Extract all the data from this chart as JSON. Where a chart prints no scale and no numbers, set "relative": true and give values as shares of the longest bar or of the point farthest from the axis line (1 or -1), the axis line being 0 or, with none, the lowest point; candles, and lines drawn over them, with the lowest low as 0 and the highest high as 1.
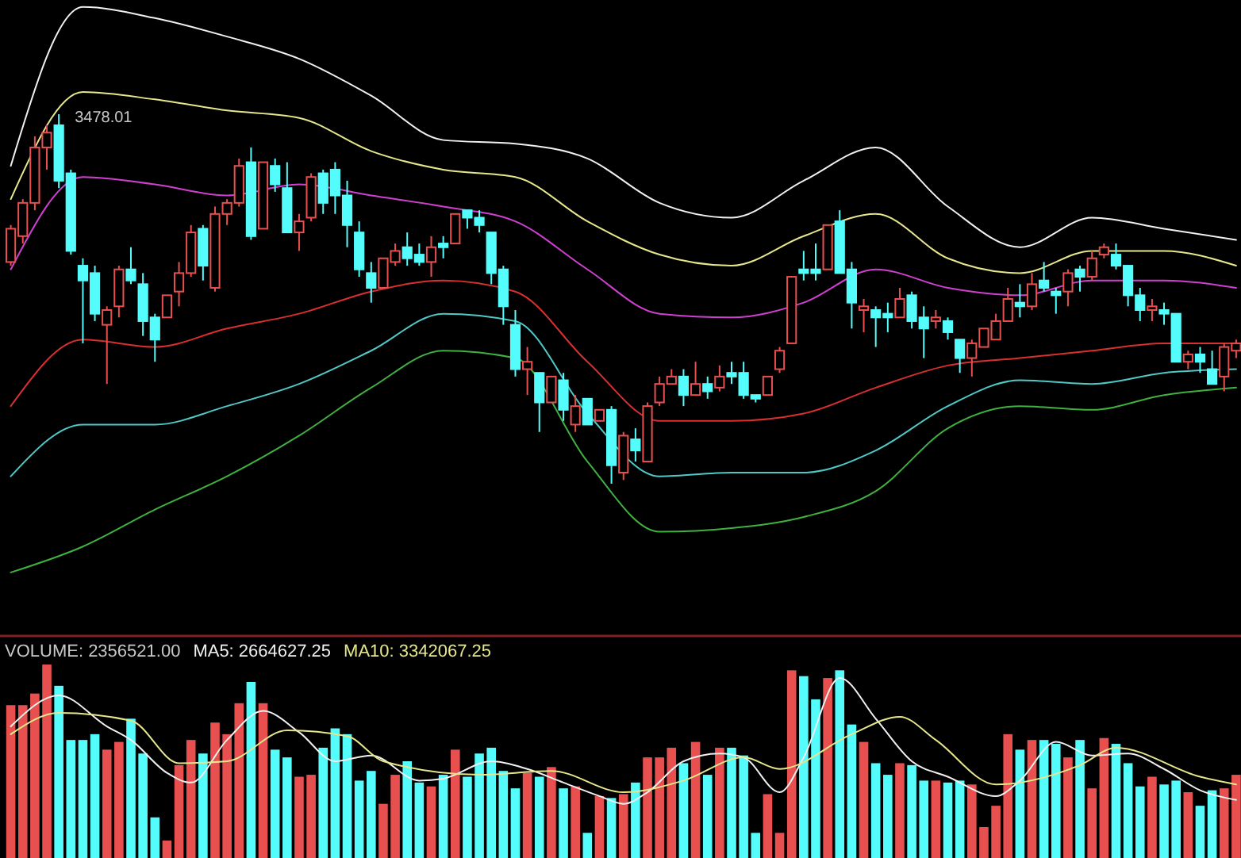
{
  "chart_data": [
    {
      "type": "candlestick",
      "relative": true,
      "categories": [
        null,
        null,
        null,
        null,
        null,
        null,
        null,
        null,
        null,
        null,
        null,
        null,
        null,
        null,
        null,
        null,
        null,
        null,
        null,
        null,
        null,
        null,
        null,
        null,
        null,
        null,
        null,
        null,
        null,
        null,
        null,
        null,
        null,
        null,
        null,
        null,
        null,
        null,
        null,
        null,
        null,
        null,
        null,
        null,
        null,
        null,
        null,
        null,
        null,
        null,
        null,
        null,
        null,
        null,
        null,
        null,
        null,
        null,
        null,
        null,
        null,
        null,
        null,
        null,
        null,
        null,
        null,
        null,
        null,
        null,
        null,
        null,
        null,
        null,
        null,
        null,
        null,
        null,
        null,
        null,
        null,
        null,
        null,
        null,
        null,
        null,
        null,
        null,
        null,
        null,
        null,
        null,
        null,
        null,
        null,
        null,
        null,
        null,
        null,
        null,
        null,
        null,
        null
      ],
      "ohlc": [
        [
          0.6,
          0.7,
          0.59,
          0.69
        ],
        [
          0.67,
          0.77,
          0.65,
          0.76
        ],
        [
          0.76,
          0.94,
          0.74,
          0.91
        ],
        [
          0.91,
          0.97,
          0.85,
          0.95
        ],
        [
          0.97,
          1.0,
          0.8,
          0.82
        ],
        [
          0.84,
          0.85,
          0.62,
          0.63
        ],
        [
          0.59,
          0.61,
          0.38,
          0.55
        ],
        [
          0.57,
          0.59,
          0.44,
          0.46
        ],
        [
          0.43,
          0.48,
          0.27,
          0.47
        ],
        [
          0.48,
          0.59,
          0.45,
          0.58
        ],
        [
          0.58,
          0.64,
          0.54,
          0.55
        ],
        [
          0.54,
          0.57,
          0.4,
          0.44
        ],
        [
          0.45,
          0.46,
          0.33,
          0.39
        ],
        [
          0.45,
          0.51,
          0.45,
          0.51
        ],
        [
          0.52,
          0.6,
          0.48,
          0.57
        ],
        [
          0.57,
          0.7,
          0.56,
          0.68
        ],
        [
          0.69,
          0.7,
          0.55,
          0.59
        ],
        [
          0.53,
          0.75,
          0.52,
          0.73
        ],
        [
          0.73,
          0.77,
          0.7,
          0.76
        ],
        [
          0.76,
          0.88,
          0.75,
          0.86
        ],
        [
          0.87,
          0.91,
          0.66,
          0.67
        ],
        [
          0.69,
          0.87,
          0.69,
          0.87
        ],
        [
          0.86,
          0.88,
          0.79,
          0.81
        ],
        [
          0.8,
          0.87,
          0.68,
          0.68
        ],
        [
          0.68,
          0.73,
          0.63,
          0.71
        ],
        [
          0.72,
          0.84,
          0.71,
          0.83
        ],
        [
          0.84,
          0.85,
          0.73,
          0.76
        ],
        [
          0.85,
          0.87,
          0.73,
          0.78
        ],
        [
          0.78,
          0.82,
          0.64,
          0.7
        ],
        [
          0.68,
          0.71,
          0.56,
          0.58
        ],
        [
          0.57,
          0.6,
          0.49,
          0.53
        ],
        [
          0.53,
          0.61,
          0.53,
          0.61
        ],
        [
          0.6,
          0.65,
          0.59,
          0.63
        ],
        [
          0.64,
          0.68,
          0.59,
          0.61
        ],
        [
          0.62,
          0.65,
          0.59,
          0.6
        ],
        [
          0.6,
          0.67,
          0.56,
          0.64
        ],
        [
          0.65,
          0.67,
          0.61,
          0.64
        ],
        [
          0.65,
          0.73,
          0.65,
          0.73
        ],
        [
          0.74,
          0.74,
          0.69,
          0.72
        ],
        [
          0.72,
          0.74,
          0.68,
          0.7
        ],
        [
          0.68,
          0.68,
          0.54,
          0.57
        ],
        [
          0.58,
          0.59,
          0.43,
          0.48
        ],
        [
          0.43,
          0.47,
          0.29,
          0.31
        ],
        [
          0.31,
          0.37,
          0.24,
          0.33
        ],
        [
          0.3,
          0.3,
          0.14,
          0.22
        ],
        [
          0.22,
          0.29,
          0.22,
          0.29
        ],
        [
          0.28,
          0.3,
          0.17,
          0.2
        ],
        [
          0.16,
          0.24,
          0.14,
          0.21
        ],
        [
          0.23,
          0.23,
          0.16,
          0.16
        ],
        [
          0.17,
          0.2,
          0.17,
          0.2
        ],
        [
          0.2,
          0.21,
          0.0,
          0.05
        ],
        [
          0.03,
          0.14,
          0.01,
          0.13
        ],
        [
          0.12,
          0.15,
          0.06,
          0.09
        ],
        [
          0.06,
          0.22,
          0.06,
          0.21
        ],
        [
          0.22,
          0.29,
          0.21,
          0.27
        ],
        [
          0.27,
          0.31,
          0.27,
          0.29
        ],
        [
          0.29,
          0.31,
          0.21,
          0.24
        ],
        [
          0.24,
          0.33,
          0.24,
          0.27
        ],
        [
          0.27,
          0.29,
          0.23,
          0.25
        ],
        [
          0.26,
          0.32,
          0.25,
          0.29
        ],
        [
          0.3,
          0.33,
          0.27,
          0.29
        ],
        [
          0.3,
          0.33,
          0.23,
          0.24
        ],
        [
          0.24,
          0.24,
          0.22,
          0.23
        ],
        [
          0.24,
          0.29,
          0.24,
          0.29
        ],
        [
          0.31,
          0.37,
          0.3,
          0.36
        ],
        [
          0.38,
          0.56,
          0.38,
          0.56
        ],
        [
          0.58,
          0.63,
          0.55,
          0.57
        ],
        [
          0.58,
          0.65,
          0.55,
          0.57
        ],
        [
          0.58,
          0.7,
          0.58,
          0.7
        ],
        [
          0.71,
          0.74,
          0.57,
          0.57
        ],
        [
          0.58,
          0.6,
          0.42,
          0.49
        ],
        [
          0.47,
          0.5,
          0.41,
          0.48
        ],
        [
          0.47,
          0.48,
          0.37,
          0.45
        ],
        [
          0.46,
          0.49,
          0.41,
          0.45
        ],
        [
          0.45,
          0.53,
          0.45,
          0.5
        ],
        [
          0.51,
          0.52,
          0.42,
          0.44
        ],
        [
          0.45,
          0.48,
          0.34,
          0.42
        ],
        [
          0.44,
          0.47,
          0.42,
          0.45
        ],
        [
          0.44,
          0.45,
          0.39,
          0.41
        ],
        [
          0.39,
          0.39,
          0.3,
          0.34
        ],
        [
          0.34,
          0.39,
          0.29,
          0.38
        ],
        [
          0.37,
          0.42,
          0.37,
          0.42
        ],
        [
          0.39,
          0.46,
          0.39,
          0.44
        ],
        [
          0.44,
          0.53,
          0.44,
          0.5
        ],
        [
          0.49,
          0.54,
          0.45,
          0.48
        ],
        [
          0.48,
          0.57,
          0.47,
          0.54
        ],
        [
          0.55,
          0.6,
          0.52,
          0.53
        ],
        [
          0.52,
          0.53,
          0.46,
          0.51
        ],
        [
          0.52,
          0.58,
          0.48,
          0.57
        ],
        [
          0.58,
          0.59,
          0.52,
          0.56
        ],
        [
          0.56,
          0.63,
          0.55,
          0.61
        ],
        [
          0.62,
          0.65,
          0.61,
          0.64
        ],
        [
          0.62,
          0.65,
          0.58,
          0.59
        ],
        [
          0.59,
          0.59,
          0.48,
          0.51
        ],
        [
          0.51,
          0.53,
          0.44,
          0.47
        ],
        [
          0.47,
          0.5,
          0.44,
          0.48
        ],
        [
          0.47,
          0.49,
          0.43,
          0.46
        ],
        [
          0.46,
          0.46,
          0.33,
          0.33
        ],
        [
          0.33,
          0.36,
          0.31,
          0.35
        ],
        [
          0.35,
          0.37,
          0.3,
          0.33
        ],
        [
          0.31,
          0.36,
          0.27,
          0.27
        ],
        [
          0.29,
          0.38,
          0.25,
          0.37
        ],
        [
          0.36,
          0.39,
          0.34,
          0.38
        ]
      ],
      "series": [
        {
          "type": "line",
          "color": "#f0f0f0",
          "values": [
            0.86,
            null,
            null,
            null,
            null,
            null,
            1.29,
            null,
            null,
            null,
            null,
            null,
            1.26,
            null,
            null,
            null,
            null,
            null,
            1.21,
            null,
            null,
            null,
            null,
            null,
            1.15,
            null,
            null,
            null,
            null,
            null,
            1.05,
            null,
            null,
            null,
            null,
            null,
            0.93,
            null,
            null,
            null,
            null,
            null,
            0.92,
            null,
            null,
            null,
            null,
            null,
            0.88,
            null,
            null,
            null,
            null,
            null,
            0.76,
            null,
            null,
            null,
            null,
            null,
            0.72,
            null,
            null,
            null,
            null,
            null,
            0.82,
            null,
            null,
            null,
            null,
            null,
            0.91,
            null,
            null,
            null,
            null,
            null,
            0.75,
            null,
            null,
            null,
            null,
            null,
            0.64,
            null,
            null,
            null,
            null,
            null,
            0.72,
            null,
            null,
            null,
            null,
            null,
            0.69,
            null,
            null,
            null,
            null,
            null,
            0.66
          ]
        },
        {
          "type": "line",
          "color": "#e6e68c",
          "values": [
            0.77,
            null,
            null,
            null,
            null,
            null,
            1.06,
            null,
            null,
            null,
            null,
            null,
            1.04,
            null,
            null,
            null,
            null,
            null,
            1.01,
            null,
            null,
            null,
            null,
            null,
            0.99,
            null,
            null,
            null,
            null,
            null,
            0.9,
            null,
            null,
            null,
            null,
            null,
            0.85,
            null,
            null,
            null,
            null,
            null,
            0.83,
            null,
            null,
            null,
            null,
            null,
            0.71,
            null,
            null,
            null,
            null,
            null,
            0.62,
            null,
            null,
            null,
            null,
            null,
            0.59,
            null,
            null,
            null,
            null,
            null,
            0.67,
            null,
            null,
            null,
            null,
            null,
            0.73,
            null,
            null,
            null,
            null,
            null,
            0.61,
            null,
            null,
            null,
            null,
            null,
            0.57,
            null,
            null,
            null,
            null,
            null,
            0.63,
            null,
            null,
            null,
            null,
            null,
            0.63,
            null,
            null,
            null,
            null,
            null,
            0.59
          ]
        },
        {
          "type": "line",
          "color": "#d040d0",
          "values": [
            0.58,
            null,
            null,
            null,
            null,
            null,
            0.83,
            null,
            null,
            null,
            null,
            null,
            0.81,
            null,
            null,
            null,
            null,
            null,
            0.78,
            null,
            null,
            null,
            null,
            null,
            0.81,
            null,
            null,
            null,
            null,
            null,
            0.78,
            null,
            null,
            null,
            null,
            null,
            0.75,
            null,
            null,
            null,
            null,
            null,
            0.71,
            null,
            null,
            null,
            null,
            null,
            0.58,
            null,
            null,
            null,
            null,
            null,
            0.46,
            null,
            null,
            null,
            null,
            null,
            0.45,
            null,
            null,
            null,
            null,
            null,
            0.49,
            null,
            null,
            null,
            null,
            null,
            0.58,
            null,
            null,
            null,
            null,
            null,
            0.53,
            null,
            null,
            null,
            null,
            null,
            0.51,
            null,
            null,
            null,
            null,
            null,
            0.55,
            null,
            null,
            null,
            null,
            null,
            0.55,
            null,
            null,
            null,
            null,
            null,
            0.53
          ]
        },
        {
          "type": "line",
          "color": "#d83030",
          "values": [
            0.21,
            null,
            null,
            null,
            null,
            null,
            0.39,
            null,
            null,
            null,
            null,
            null,
            0.37,
            null,
            null,
            null,
            null,
            null,
            0.42,
            null,
            null,
            null,
            null,
            null,
            0.46,
            null,
            null,
            null,
            null,
            null,
            0.52,
            null,
            null,
            null,
            null,
            null,
            0.55,
            null,
            null,
            null,
            null,
            null,
            0.52,
            null,
            null,
            null,
            null,
            null,
            0.33,
            null,
            null,
            null,
            null,
            null,
            0.17,
            null,
            null,
            null,
            null,
            null,
            0.17,
            null,
            null,
            null,
            null,
            null,
            0.19,
            null,
            null,
            null,
            null,
            null,
            0.26,
            null,
            null,
            null,
            null,
            null,
            0.32,
            null,
            null,
            null,
            null,
            null,
            0.34,
            null,
            null,
            null,
            null,
            null,
            0.36,
            null,
            null,
            null,
            null,
            null,
            0.38,
            null,
            null,
            null,
            null,
            null,
            0.38
          ]
        },
        {
          "type": "line",
          "color": "#50c8c8",
          "values": [
            0.02,
            null,
            null,
            null,
            null,
            null,
            0.16,
            null,
            null,
            null,
            null,
            null,
            0.16,
            null,
            null,
            null,
            null,
            null,
            0.21,
            null,
            null,
            null,
            null,
            null,
            0.27,
            null,
            null,
            null,
            null,
            null,
            0.36,
            null,
            null,
            null,
            null,
            null,
            0.46,
            null,
            null,
            null,
            null,
            null,
            0.44,
            null,
            null,
            null,
            null,
            null,
            0.19,
            null,
            null,
            null,
            null,
            null,
            0.02,
            null,
            null,
            null,
            null,
            null,
            0.03,
            null,
            null,
            null,
            null,
            null,
            0.03,
            null,
            null,
            null,
            null,
            null,
            0.09,
            null,
            null,
            null,
            null,
            null,
            0.21,
            null,
            null,
            null,
            null,
            null,
            0.28,
            null,
            null,
            null,
            null,
            null,
            0.27,
            null,
            null,
            null,
            null,
            null,
            0.3,
            null,
            null,
            null,
            null,
            null,
            0.31
          ]
        },
        {
          "type": "line",
          "color": "#40b040",
          "values": [
            -0.24,
            null,
            null,
            null,
            null,
            null,
            -0.17,
            null,
            null,
            null,
            null,
            null,
            -0.07,
            null,
            null,
            null,
            null,
            null,
            0.02,
            null,
            null,
            null,
            null,
            null,
            0.13,
            null,
            null,
            null,
            null,
            null,
            0.26,
            null,
            null,
            null,
            null,
            null,
            0.36,
            null,
            null,
            null,
            null,
            null,
            0.34,
            null,
            null,
            null,
            null,
            null,
            0.06,
            null,
            null,
            null,
            null,
            null,
            -0.13,
            null,
            null,
            null,
            null,
            null,
            -0.12,
            null,
            null,
            null,
            null,
            null,
            -0.09,
            null,
            null,
            null,
            null,
            null,
            -0.02,
            null,
            null,
            null,
            null,
            null,
            0.15,
            null,
            null,
            null,
            null,
            null,
            0.21,
            null,
            null,
            null,
            null,
            null,
            0.2,
            null,
            null,
            null,
            null,
            null,
            0.24,
            null,
            null,
            null,
            null,
            null,
            0.26
          ]
        }
      ],
      "annotations": [
        "3478.01"
      ]
    },
    {
      "type": "bar",
      "relative": true,
      "title": "VOLUME: 2356521.00",
      "legend": "top left",
      "categories": [
        null,
        null,
        null,
        null,
        null,
        null,
        null,
        null,
        null,
        null,
        null,
        null,
        null,
        null,
        null,
        null,
        null,
        null,
        null,
        null,
        null,
        null,
        null,
        null,
        null,
        null,
        null,
        null,
        null,
        null,
        null,
        null,
        null,
        null,
        null,
        null,
        null,
        null,
        null,
        null,
        null,
        null,
        null,
        null,
        null,
        null,
        null,
        null,
        null,
        null,
        null,
        null,
        null,
        null,
        null,
        null,
        null,
        null,
        null,
        null,
        null,
        null,
        null,
        null,
        null,
        null,
        null,
        null,
        null,
        null,
        null,
        null,
        null,
        null,
        null,
        null,
        null,
        null,
        null,
        null,
        null,
        null,
        null,
        null,
        null,
        null,
        null,
        null,
        null,
        null,
        null,
        null,
        null,
        null,
        null,
        null,
        null,
        null,
        null,
        null,
        null,
        null,
        null
      ],
      "series": [
        {
          "values": [
            0.79,
            0.79,
            0.85,
            1.0,
            0.89,
            0.61,
            0.61,
            0.64,
            0.56,
            0.6,
            0.72,
            0.54,
            0.21,
            0.09,
            0.48,
            0.61,
            0.54,
            0.7,
            0.64,
            0.8,
            0.91,
            0.8,
            0.56,
            0.52,
            0.42,
            0.43,
            0.57,
            0.67,
            0.64,
            0.4,
            0.45,
            0.28,
            0.43,
            0.5,
            0.39,
            0.37,
            0.43,
            0.56,
            0.42,
            0.54,
            0.57,
            0.45,
            0.36,
            0.44,
            0.42,
            0.47,
            0.36,
            0.37,
            0.13,
            0.32,
            0.31,
            0.33,
            0.39,
            0.52,
            0.52,
            0.57,
            0.49,
            0.6,
            0.43,
            0.57,
            0.57,
            0.53,
            0.13,
            0.33,
            0.13,
            0.97,
            0.94,
            0.82,
            0.93,
            0.97,
            0.69,
            0.6,
            0.49,
            0.43,
            0.49,
            0.48,
            0.4,
            0.4,
            0.39,
            0.4,
            0.38,
            0.16,
            0.27,
            0.64,
            0.56,
            0.61,
            0.61,
            0.59,
            0.52,
            0.61,
            0.36,
            0.62,
            0.59,
            0.49,
            0.37,
            0.42,
            0.38,
            0.4,
            0.34,
            0.27,
            0.35,
            0.36,
            0.43
          ],
          "colors": [
            "#e85050",
            "#e85050",
            "#e85050",
            "#e85050",
            "#54fcfc",
            "#54fcfc",
            "#54fcfc",
            "#54fcfc",
            "#e85050",
            "#e85050",
            "#54fcfc",
            "#54fcfc",
            "#54fcfc",
            "#e85050",
            "#e85050",
            "#e85050",
            "#54fcfc",
            "#e85050",
            "#e85050",
            "#e85050",
            "#54fcfc",
            "#e85050",
            "#54fcfc",
            "#54fcfc",
            "#e85050",
            "#e85050",
            "#54fcfc",
            "#54fcfc",
            "#54fcfc",
            "#54fcfc",
            "#54fcfc",
            "#e85050",
            "#e85050",
            "#54fcfc",
            "#54fcfc",
            "#e85050",
            "#54fcfc",
            "#e85050",
            "#54fcfc",
            "#54fcfc",
            "#54fcfc",
            "#54fcfc",
            "#54fcfc",
            "#e85050",
            "#54fcfc",
            "#e85050",
            "#54fcfc",
            "#e85050",
            "#54fcfc",
            "#e85050",
            "#54fcfc",
            "#e85050",
            "#54fcfc",
            "#e85050",
            "#e85050",
            "#e85050",
            "#54fcfc",
            "#e85050",
            "#54fcfc",
            "#e85050",
            "#54fcfc",
            "#54fcfc",
            "#54fcfc",
            "#e85050",
            "#e85050",
            "#e85050",
            "#54fcfc",
            "#54fcfc",
            "#e85050",
            "#54fcfc",
            "#54fcfc",
            "#e85050",
            "#54fcfc",
            "#54fcfc",
            "#e85050",
            "#54fcfc",
            "#54fcfc",
            "#e85050",
            "#54fcfc",
            "#54fcfc",
            "#e85050",
            "#e85050",
            "#e85050",
            "#e85050",
            "#54fcfc",
            "#e85050",
            "#54fcfc",
            "#54fcfc",
            "#e85050",
            "#54fcfc",
            "#e85050",
            "#e85050",
            "#54fcfc",
            "#54fcfc",
            "#54fcfc",
            "#e85050",
            "#54fcfc",
            "#54fcfc",
            "#e85050",
            "#54fcfc",
            "#54fcfc",
            "#e85050",
            "#e85050"
          ]
        },
        {
          "type": "line",
          "name": "MA5: 2664627.25",
          "color": "#f0f0f0",
          "values": [
            0.68,
            null,
            null,
            null,
            0.84,
            null,
            null,
            null,
            0.68,
            null,
            0.61,
            null,
            null,
            0.44,
            null,
            0.39,
            null,
            null,
            0.61,
            null,
            null,
            0.76,
            null,
            null,
            0.65,
            null,
            null,
            0.5,
            null,
            null,
            0.53,
            null,
            null,
            null,
            0.4,
            null,
            0.41,
            null,
            null,
            null,
            0.5,
            null,
            null,
            0.46,
            null,
            null,
            0.39,
            null,
            null,
            0.32,
            null,
            0.28,
            null,
            0.34,
            null,
            null,
            0.5,
            null,
            null,
            0.54,
            null,
            0.52,
            null,
            null,
            0.34,
            null,
            0.52,
            null,
            null,
            0.93,
            null,
            null,
            0.72,
            null,
            null,
            0.5,
            null,
            null,
            0.42,
            null,
            null,
            null,
            0.32,
            null,
            0.4,
            null,
            null,
            0.6,
            null,
            null,
            0.53,
            null,
            null,
            0.54,
            null,
            null,
            0.46,
            null,
            null,
            0.35,
            null,
            null,
            0.3
          ]
        },
        {
          "type": "line",
          "name": "MA10: 3342067.25",
          "color": "#e6e68c",
          "values": [
            0.64,
            null,
            null,
            null,
            0.75,
            null,
            null,
            null,
            null,
            null,
            0.71,
            null,
            null,
            null,
            0.49,
            null,
            null,
            null,
            0.5,
            null,
            null,
            null,
            null,
            0.66,
            null,
            null,
            null,
            null,
            0.63,
            null,
            null,
            0.5,
            null,
            null,
            null,
            null,
            null,
            null,
            null,
            0.43,
            null,
            null,
            null,
            null,
            null,
            0.45,
            null,
            null,
            null,
            null,
            null,
            0.34,
            null,
            null,
            null,
            null,
            0.4,
            null,
            null,
            null,
            null,
            0.52,
            null,
            null,
            0.46,
            null,
            null,
            null,
            null,
            null,
            0.64,
            null,
            null,
            null,
            0.73,
            null,
            null,
            0.61,
            null,
            null,
            null,
            null,
            0.38,
            null,
            null,
            null,
            null,
            null,
            null,
            0.48,
            null,
            null,
            0.57,
            null,
            null,
            null,
            null,
            null,
            null,
            0.42,
            null,
            null,
            0.38
          ]
        }
      ]
    }
  ]
}
